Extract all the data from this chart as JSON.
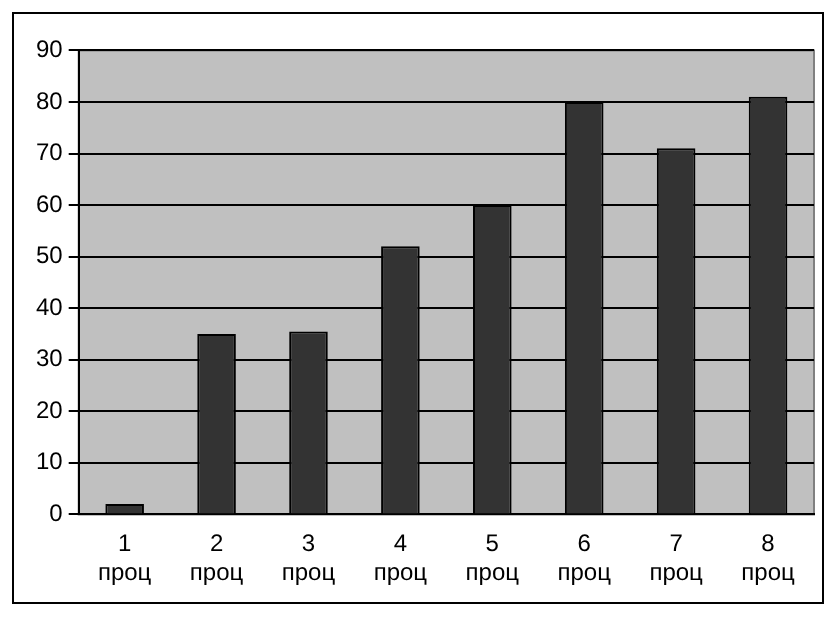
{
  "chart_data": {
    "type": "bar",
    "categories": [
      "1 проц",
      "2 проц",
      "3 проц",
      "4 проц",
      "5 проц",
      "6 проц",
      "7 проц",
      "8 проц"
    ],
    "values": [
      2,
      35,
      35.5,
      52,
      60,
      80,
      71,
      81
    ],
    "color": "#333333",
    "ylim": [
      0,
      90
    ],
    "yticks": [
      0,
      10,
      20,
      30,
      40,
      50,
      60,
      70,
      80,
      90
    ],
    "grid": "y",
    "legend": false
  }
}
